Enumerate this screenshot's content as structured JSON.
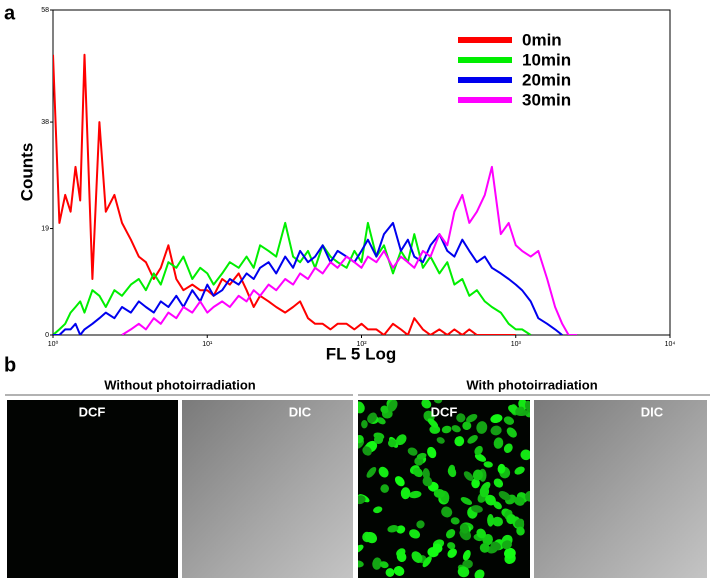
{
  "chart_data": {
    "type": "line",
    "x_label": "FL 5 Log",
    "y_label": "Counts",
    "log_x": true,
    "xlim": [
      1,
      10000
    ],
    "xticks": [
      {
        "value": 1,
        "label": "10⁰"
      },
      {
        "value": 10,
        "label": "10¹"
      },
      {
        "value": 100,
        "label": "10²"
      },
      {
        "value": 1000,
        "label": "10³"
      },
      {
        "value": 10000,
        "label": "10⁴"
      }
    ],
    "ylim": [
      0,
      58
    ],
    "yticks": [
      0,
      19,
      38,
      58
    ],
    "legend": "upper right",
    "x": [
      1,
      1.1,
      1.2,
      1.3,
      1.4,
      1.5,
      1.6,
      1.8,
      2,
      2.2,
      2.5,
      2.8,
      3.2,
      3.6,
      4,
      4.5,
      5,
      5.6,
      6.3,
      7,
      8,
      9,
      10,
      11,
      12.5,
      14,
      16,
      18,
      20,
      22,
      25,
      28,
      32,
      36,
      40,
      45,
      50,
      56,
      63,
      70,
      80,
      90,
      100,
      110,
      125,
      140,
      160,
      180,
      200,
      220,
      250,
      280,
      320,
      360,
      400,
      450,
      500,
      560,
      630,
      700,
      800,
      900,
      1000,
      1100,
      1250,
      1400,
      1600,
      1800,
      2000,
      2200,
      2500
    ],
    "series": [
      {
        "name": "0min",
        "color": "#ff0000",
        "values": [
          50,
          20,
          25,
          22,
          30,
          24,
          50,
          10,
          38,
          22,
          25,
          20,
          17,
          14,
          13,
          10,
          12,
          16,
          10,
          8,
          9,
          8,
          8,
          7,
          10,
          9,
          11,
          8,
          5,
          7,
          6,
          5,
          4,
          5,
          6,
          3,
          2,
          2,
          1,
          2,
          2,
          1,
          2,
          1,
          1,
          0,
          2,
          1,
          0,
          3,
          1,
          0,
          1,
          0,
          1,
          0,
          1,
          0,
          0,
          0,
          0,
          0,
          0,
          null,
          null,
          null,
          null,
          null,
          null,
          null,
          null
        ]
      },
      {
        "name": "10min",
        "color": "#00ee00",
        "values": [
          0,
          1,
          2,
          4,
          5,
          6,
          4,
          8,
          7,
          5,
          8,
          7,
          9,
          10,
          8,
          11,
          9,
          13,
          12,
          14,
          10,
          12,
          11,
          9,
          11,
          13,
          12,
          14,
          12,
          16,
          15,
          14,
          20,
          14,
          13,
          15,
          12,
          16,
          14,
          13,
          12,
          15,
          13,
          20,
          14,
          16,
          11,
          15,
          13,
          18,
          12,
          14,
          11,
          13,
          9,
          10,
          7,
          8,
          6,
          5,
          4,
          2,
          1,
          1,
          0,
          null,
          null,
          null,
          null,
          null,
          null
        ]
      },
      {
        "name": "20min",
        "color": "#0000ee",
        "values": [
          0,
          0,
          1,
          1,
          2,
          0,
          1,
          2,
          3,
          4,
          3,
          5,
          4,
          6,
          5,
          4,
          6,
          5,
          7,
          5,
          8,
          6,
          9,
          7,
          8,
          10,
          9,
          11,
          10,
          12,
          13,
          11,
          14,
          12,
          15,
          13,
          14,
          16,
          13,
          15,
          14,
          13,
          15,
          17,
          14,
          18,
          20,
          15,
          17,
          14,
          13,
          16,
          18,
          15,
          14,
          17,
          15,
          13,
          14,
          12,
          11,
          10,
          9,
          8,
          6,
          3,
          2,
          1,
          0,
          null,
          null
        ]
      },
      {
        "name": "30min",
        "color": "#ff00ff",
        "values": [
          null,
          null,
          null,
          null,
          null,
          null,
          null,
          null,
          null,
          null,
          null,
          0,
          1,
          2,
          1,
          3,
          2,
          4,
          3,
          5,
          4,
          6,
          4,
          5,
          6,
          5,
          7,
          6,
          8,
          7,
          9,
          8,
          10,
          9,
          11,
          10,
          12,
          11,
          13,
          12,
          14,
          13,
          12,
          14,
          13,
          15,
          12,
          14,
          13,
          12,
          15,
          14,
          18,
          16,
          22,
          25,
          20,
          22,
          25,
          30,
          18,
          20,
          16,
          15,
          14,
          15,
          10,
          5,
          2,
          0,
          0
        ]
      }
    ]
  },
  "figure": {
    "panel_labels": [
      "a",
      "b"
    ],
    "image_panels": [
      {
        "title": "Without photoirradiation",
        "images": [
          {
            "label": "DCF"
          },
          {
            "label": "DIC"
          }
        ]
      },
      {
        "title": "With photoirradiation",
        "images": [
          {
            "label": "DCF"
          },
          {
            "label": "DIC"
          }
        ]
      }
    ]
  }
}
